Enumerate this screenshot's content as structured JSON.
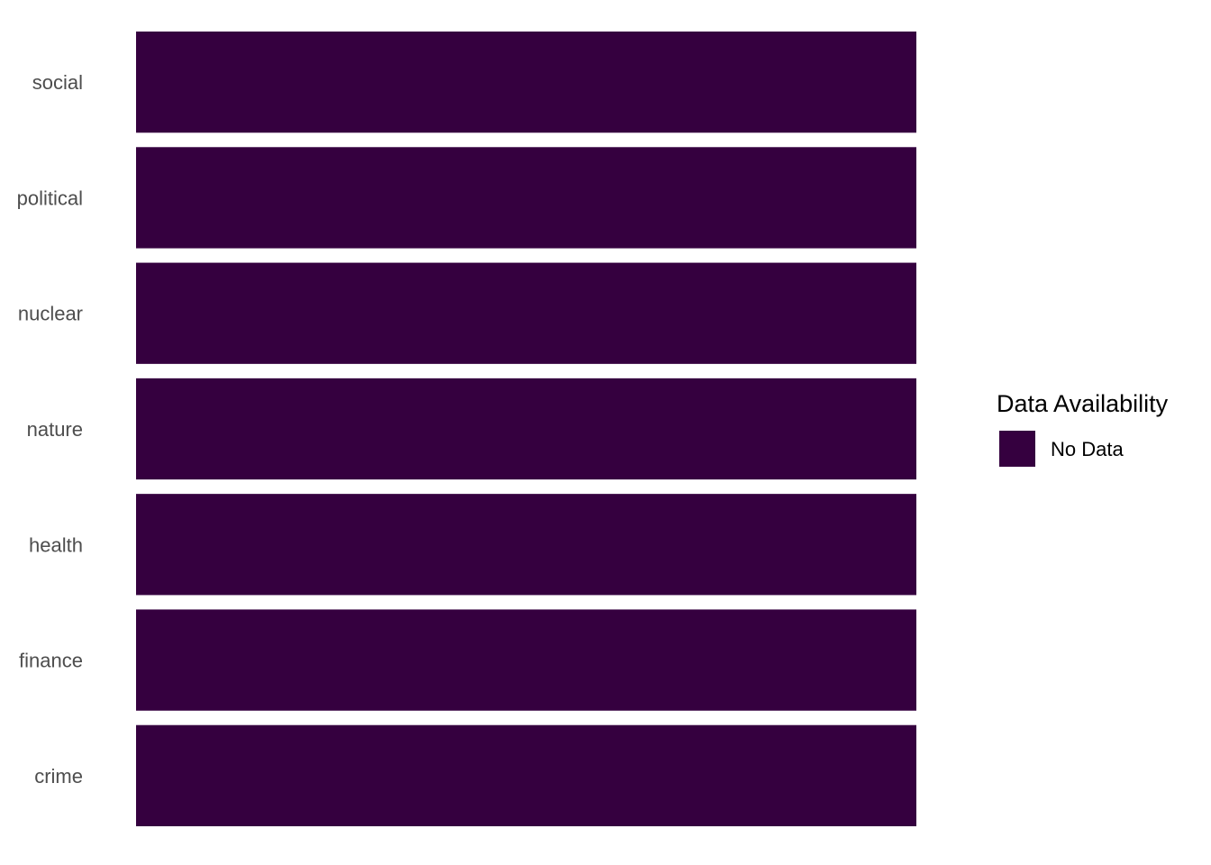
{
  "chart_data": {
    "type": "heatmap",
    "title": "",
    "xlabel": "",
    "ylabel": "",
    "y_categories": [
      "social",
      "political",
      "nuclear",
      "nature",
      "health",
      "finance",
      "crime"
    ],
    "cells": [
      {
        "category": "social",
        "value": "No Data"
      },
      {
        "category": "political",
        "value": "No Data"
      },
      {
        "category": "nuclear",
        "value": "No Data"
      },
      {
        "category": "nature",
        "value": "No Data"
      },
      {
        "category": "health",
        "value": "No Data"
      },
      {
        "category": "finance",
        "value": "No Data"
      },
      {
        "category": "crime",
        "value": "No Data"
      }
    ],
    "legend": {
      "title": "Data Availability",
      "placement": "right",
      "entries": [
        {
          "label": "No Data",
          "color": "#35003F"
        }
      ]
    },
    "grid": false
  }
}
